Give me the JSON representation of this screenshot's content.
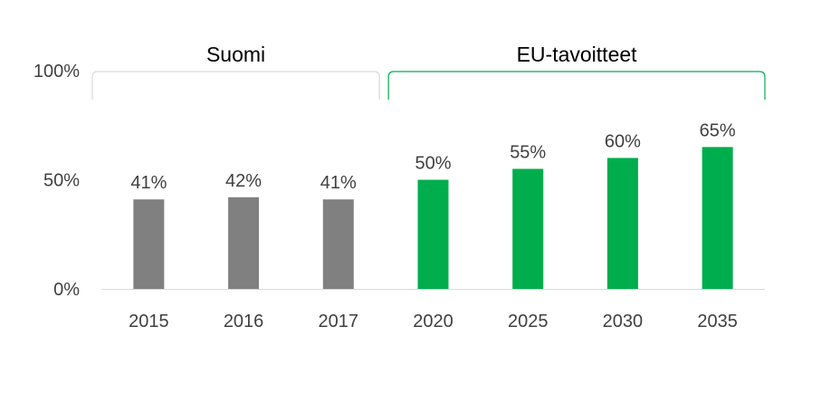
{
  "chart_data": {
    "type": "bar",
    "categories": [
      "2015",
      "2016",
      "2017",
      "2020",
      "2025",
      "2030",
      "2035"
    ],
    "values": [
      41,
      42,
      41,
      50,
      55,
      60,
      65
    ],
    "data_labels": [
      "41%",
      "42%",
      "41%",
      "50%",
      "55%",
      "60%",
      "65%"
    ],
    "groups": [
      {
        "label": "Suomi",
        "categories": [
          "2015",
          "2016",
          "2017"
        ],
        "color": "#808080",
        "bracket_color": "#d9d9d9"
      },
      {
        "label": "EU-tavoitteet",
        "categories": [
          "2020",
          "2025",
          "2030",
          "2035"
        ],
        "color": "#00ad4d",
        "bracket_color": "#00ad4d"
      }
    ],
    "yticks": [
      {
        "value": 0,
        "label": "0%"
      },
      {
        "value": 50,
        "label": "50%"
      },
      {
        "value": 100,
        "label": "100%"
      }
    ],
    "ylim": [
      0,
      100
    ],
    "grid": false,
    "axis_color": "#d9d9d9"
  }
}
